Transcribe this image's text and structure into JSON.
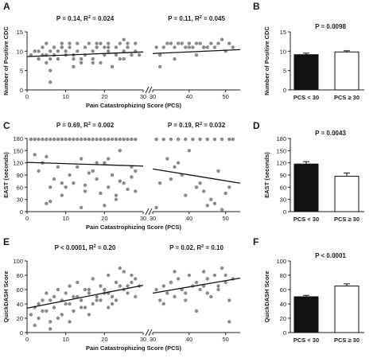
{
  "panels": [
    {
      "letter": "A",
      "ylabel": "Number of Positive CDC",
      "xlabel": "Pain Catastrophizing Score (PCS)",
      "yticks": [
        "0",
        "5",
        "10",
        "15"
      ],
      "ylim": [
        0,
        15
      ],
      "left": {
        "stat_p": "P = 0.14, R",
        "stat_r": " = 0.024",
        "xlim": [
          0,
          30
        ],
        "xticks": [
          "0",
          "10",
          "20",
          "30"
        ]
      },
      "right": {
        "stat_p": "P = 0.11, R",
        "stat_r": " = 0.045",
        "xlim": [
          30,
          54
        ],
        "xticks": [
          "30",
          "40",
          "50"
        ]
      },
      "bar": {
        "stat": "P = 0.0098",
        "ylim": [
          0,
          15
        ],
        "yticks": [
          "0",
          "5",
          "10",
          "15"
        ],
        "ylabel": "Number of Positive CDC"
      }
    },
    {
      "letter": "C",
      "ylabel": "EAST (seconds)",
      "xlabel": "Pain Catastrophizing Score (PCS)",
      "yticks": [
        "0",
        "30",
        "60",
        "90",
        "120",
        "150",
        "180"
      ],
      "ylim": [
        0,
        180
      ],
      "left": {
        "stat_p": "P = 0.69, R",
        "stat_r": " = 0.002",
        "xlim": [
          0,
          30
        ],
        "xticks": [
          "0",
          "10",
          "20",
          "30"
        ]
      },
      "right": {
        "stat_p": "P = 0.19, R",
        "stat_r": " = 0.032",
        "xlim": [
          30,
          54
        ],
        "xticks": [
          "30",
          "40",
          "50"
        ]
      },
      "bar": {
        "letter": "D",
        "stat": "P = 0.0043",
        "ylim": [
          0,
          180
        ],
        "yticks": [
          "0",
          "30",
          "60",
          "90",
          "120",
          "150",
          "180"
        ],
        "ylabel": "EAST (seconds)"
      }
    },
    {
      "letter": "E",
      "ylabel": "QuickDASH Score",
      "xlabel": "Pain Catastrophizing Score (PCS)",
      "yticks": [
        "0",
        "20",
        "40",
        "60",
        "80",
        "100"
      ],
      "ylim": [
        0,
        100
      ],
      "left": {
        "stat_p": "P < 0.0001, R",
        "stat_r": " = 0.20",
        "xlim": [
          0,
          30
        ],
        "xticks": [
          "0",
          "10",
          "20",
          "30"
        ]
      },
      "right": {
        "stat_p": "P = 0.02, R",
        "stat_r": " = 0.10",
        "xlim": [
          30,
          54
        ],
        "xticks": [
          "30",
          "40",
          "50"
        ]
      },
      "bar": {
        "letter": "F",
        "stat": "P < 0.0001",
        "ylim": [
          0,
          100
        ],
        "yticks": [
          "0",
          "20",
          "40",
          "60",
          "80",
          "100"
        ],
        "ylabel": "QuickDASH Score"
      }
    }
  ],
  "bar_letters": [
    "B",
    "D",
    "F"
  ],
  "superscript": "2",
  "bar_categories": [
    "PCS < 30",
    "PCS ≥ 30"
  ],
  "colors": {
    "points": "#8a8a8a",
    "bar_low": "#111111",
    "bar_high": "#ffffff",
    "line": "#111111"
  },
  "chart_data": [
    {
      "type": "scatter",
      "ylabel": "Number of Positive CDC",
      "xlabel": "Pain Catastrophizing Score (PCS)",
      "xlim": [
        0,
        30
      ],
      "ylim": [
        0,
        15
      ],
      "fit": {
        "x": [
          0,
          30
        ],
        "y": [
          8.6,
          9.8
        ]
      },
      "x": [
        1,
        2,
        3,
        3,
        4,
        4,
        5,
        5,
        5,
        6,
        6,
        6,
        7,
        7,
        8,
        8,
        9,
        9,
        10,
        10,
        11,
        11,
        12,
        12,
        13,
        13,
        14,
        15,
        15,
        16,
        17,
        17,
        18,
        18,
        19,
        20,
        20,
        21,
        21,
        22,
        23,
        23,
        24,
        25,
        25,
        26,
        26,
        27,
        28,
        28,
        29,
        6,
        12,
        17,
        21,
        25,
        9,
        14,
        19,
        3,
        24
      ],
      "y": [
        9,
        10,
        10,
        8,
        11,
        9,
        12,
        7,
        9,
        5,
        10,
        8,
        11,
        9,
        10,
        8,
        12,
        11,
        10,
        9,
        12,
        11,
        9,
        8,
        10,
        12,
        8,
        11,
        9,
        12,
        10,
        8,
        12,
        11,
        7,
        11,
        9,
        10,
        12,
        6,
        11,
        9,
        12,
        10,
        8,
        12,
        11,
        9,
        12,
        10,
        9,
        2,
        6,
        7,
        11,
        13,
        11,
        7,
        12,
        8,
        8
      ]
    },
    {
      "type": "scatter",
      "ylabel": "Number of Positive CDC",
      "xlabel": "Pain Catastrophizing Score (PCS)",
      "xlim": [
        30,
        54
      ],
      "ylim": [
        0,
        15
      ],
      "fit": {
        "x": [
          30,
          54
        ],
        "y": [
          9.4,
          10.4
        ]
      },
      "x": [
        31,
        32,
        32,
        33,
        34,
        35,
        36,
        37,
        38,
        39,
        40,
        41,
        42,
        42,
        43,
        44,
        45,
        46,
        47,
        48,
        49,
        50,
        51,
        52,
        36,
        40,
        44
      ],
      "y": [
        11,
        9,
        6,
        11,
        12,
        12,
        11,
        12,
        12,
        11,
        11,
        11,
        12,
        9,
        12,
        11,
        11,
        12,
        11,
        12,
        13,
        10,
        12,
        11,
        8,
        12,
        11
      ]
    },
    {
      "type": "scatter",
      "ylabel": "EAST (seconds)",
      "xlabel": "Pain Catastrophizing Score (PCS)",
      "xlim": [
        0,
        30
      ],
      "ylim": [
        0,
        180
      ],
      "fit": {
        "x": [
          0,
          30
        ],
        "y": [
          121,
          112
        ]
      },
      "x": [
        1,
        2,
        3,
        4,
        5,
        6,
        7,
        8,
        9,
        10,
        11,
        12,
        13,
        14,
        15,
        16,
        17,
        18,
        19,
        20,
        21,
        22,
        23,
        24,
        25,
        26,
        27,
        28,
        2,
        4,
        6,
        8,
        9,
        11,
        12,
        14,
        15,
        17,
        18,
        20,
        21,
        22,
        23,
        24,
        25,
        27,
        28,
        3,
        5,
        7,
        10,
        13,
        16,
        19,
        21,
        24,
        26,
        28,
        6,
        9,
        14,
        18,
        23,
        27,
        5,
        15,
        20
      ],
      "y": [
        178,
        178,
        178,
        178,
        178,
        178,
        178,
        178,
        178,
        178,
        178,
        178,
        178,
        178,
        178,
        178,
        178,
        178,
        178,
        178,
        178,
        178,
        178,
        178,
        178,
        178,
        178,
        178,
        140,
        120,
        60,
        110,
        40,
        90,
        70,
        130,
        50,
        100,
        80,
        120,
        60,
        90,
        30,
        150,
        70,
        110,
        50,
        100,
        20,
        80,
        60,
        110,
        95,
        45,
        130,
        75,
        55,
        100,
        25,
        70,
        10,
        120,
        40,
        85,
        135,
        65,
        15
      ]
    },
    {
      "type": "scatter",
      "ylabel": "EAST (seconds)",
      "xlabel": "Pain Catastrophizing Score (PCS)",
      "xlim": [
        30,
        54
      ],
      "ylim": [
        0,
        180
      ],
      "fit": {
        "x": [
          30,
          54
        ],
        "y": [
          105,
          70
        ]
      },
      "x": [
        31,
        33,
        35,
        37,
        39,
        41,
        43,
        45,
        47,
        49,
        51,
        52,
        32,
        34,
        36,
        38,
        40,
        42,
        44,
        46,
        48,
        50,
        31,
        35,
        39,
        43,
        47,
        51,
        37,
        45,
        49
      ],
      "y": [
        178,
        178,
        178,
        178,
        178,
        178,
        178,
        178,
        178,
        178,
        178,
        178,
        70,
        130,
        110,
        90,
        150,
        60,
        50,
        30,
        100,
        45,
        10,
        80,
        40,
        70,
        20,
        60,
        120,
        15,
        5
      ]
    },
    {
      "type": "scatter",
      "ylabel": "QuickDASH Score",
      "xlabel": "Pain Catastrophizing Score (PCS)",
      "xlim": [
        0,
        30
      ],
      "ylim": [
        0,
        100
      ],
      "fit": {
        "x": [
          0,
          30
        ],
        "y": [
          34,
          66
        ]
      },
      "x": [
        1,
        2,
        3,
        3,
        4,
        5,
        5,
        6,
        7,
        7,
        8,
        9,
        9,
        10,
        11,
        11,
        12,
        13,
        13,
        14,
        15,
        15,
        16,
        17,
        17,
        18,
        19,
        19,
        20,
        21,
        21,
        22,
        23,
        23,
        24,
        25,
        25,
        26,
        27,
        28,
        29,
        2,
        4,
        6,
        8,
        10,
        12,
        14,
        16,
        18,
        20,
        22,
        24,
        26,
        28,
        6,
        11,
        16,
        21,
        27
      ],
      "y": [
        25,
        35,
        40,
        20,
        45,
        30,
        55,
        15,
        50,
        35,
        60,
        25,
        45,
        55,
        40,
        65,
        30,
        50,
        70,
        45,
        35,
        60,
        55,
        40,
        75,
        50,
        65,
        45,
        60,
        55,
        80,
        50,
        70,
        45,
        65,
        60,
        85,
        55,
        70,
        75,
        65,
        10,
        30,
        45,
        20,
        40,
        50,
        35,
        60,
        45,
        55,
        40,
        90,
        65,
        50,
        5,
        15,
        25,
        35,
        80
      ]
    },
    {
      "type": "scatter",
      "ylabel": "QuickDASH Score",
      "xlabel": "Pain Catastrophizing Score (PCS)",
      "xlim": [
        30,
        54
      ],
      "ylim": [
        0,
        100
      ],
      "fit": {
        "x": [
          30,
          54
        ],
        "y": [
          55,
          76
        ]
      },
      "x": [
        31,
        32,
        33,
        34,
        35,
        36,
        37,
        38,
        39,
        40,
        41,
        42,
        43,
        44,
        45,
        46,
        47,
        48,
        49,
        50,
        51,
        52,
        33,
        36,
        39,
        42,
        45,
        48,
        51,
        35,
        44,
        50
      ],
      "y": [
        60,
        45,
        65,
        55,
        70,
        50,
        75,
        60,
        55,
        80,
        65,
        70,
        60,
        85,
        75,
        50,
        80,
        65,
        90,
        70,
        15,
        75,
        40,
        85,
        45,
        30,
        55,
        60,
        45,
        70,
        65,
        80
      ]
    },
    {
      "type": "bar",
      "ylabel": "Number of Positive CDC",
      "categories": [
        "PCS < 30",
        "PCS ≥ 30"
      ],
      "values": [
        9.1,
        9.8
      ],
      "errors": [
        0.4,
        0.3
      ],
      "ylim": [
        0,
        15
      ]
    },
    {
      "type": "bar",
      "ylabel": "EAST (seconds)",
      "categories": [
        "PCS < 30",
        "PCS ≥ 30"
      ],
      "values": [
        117,
        87
      ],
      "errors": [
        6,
        8
      ],
      "ylim": [
        0,
        180
      ]
    },
    {
      "type": "bar",
      "ylabel": "QuickDASH Score",
      "categories": [
        "PCS < 30",
        "PCS ≥ 30"
      ],
      "values": [
        50,
        65
      ],
      "errors": [
        2,
        3
      ],
      "ylim": [
        0,
        100
      ]
    }
  ]
}
